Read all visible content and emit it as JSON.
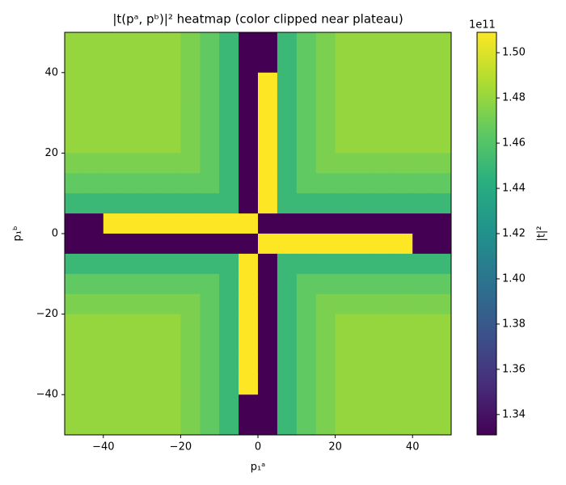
{
  "chart_data": {
    "type": "heatmap",
    "title": "|t(pᵃ, pᵇ)|² heatmap (color clipped near plateau)",
    "x_label": "p₁ᵃ",
    "y_label": "p₁ᵇ",
    "colorbar_label": "|t|²",
    "colorbar_offset": "1e11",
    "colormap": "viridis",
    "xlim": [
      -50,
      50
    ],
    "ylim": [
      -50,
      50
    ],
    "clim": [
      1.331,
      1.509
    ],
    "xticks": [
      {
        "value": -40,
        "label": "−40"
      },
      {
        "value": -20,
        "label": "−20"
      },
      0,
      20,
      40
    ],
    "yticks": [
      {
        "value": -40,
        "label": "−40"
      },
      {
        "value": -20,
        "label": "−20"
      },
      0,
      20,
      40
    ],
    "cticks": [
      1.34,
      1.36,
      1.38,
      {
        "value": 1.4,
        "label": "1.40"
      },
      1.42,
      1.44,
      1.46,
      1.48,
      {
        "value": 1.5,
        "label": "1.50"
      }
    ],
    "x": [
      -47.5,
      -42.5,
      -37.5,
      -32.5,
      -27.5,
      -22.5,
      -17.5,
      -12.5,
      -7.5,
      -2.5,
      2.5,
      7.5,
      12.5,
      17.5,
      22.5,
      27.5,
      32.5,
      37.5,
      42.5,
      47.5
    ],
    "y": [
      47.5,
      42.5,
      37.5,
      32.5,
      27.5,
      22.5,
      17.5,
      12.5,
      7.5,
      2.5,
      -2.5,
      -7.5,
      -12.5,
      -17.5,
      -22.5,
      -27.5,
      -32.5,
      -37.5,
      -42.5,
      -47.5
    ],
    "z": [
      [
        1.48,
        1.48,
        1.48,
        1.48,
        1.48,
        1.48,
        1.473,
        1.465,
        1.45,
        1.331,
        1.331,
        1.45,
        1.465,
        1.473,
        1.48,
        1.48,
        1.48,
        1.48,
        1.48,
        1.48
      ],
      [
        1.48,
        1.48,
        1.48,
        1.48,
        1.48,
        1.48,
        1.473,
        1.465,
        1.45,
        1.331,
        1.331,
        1.45,
        1.465,
        1.473,
        1.48,
        1.48,
        1.48,
        1.48,
        1.48,
        1.48
      ],
      [
        1.48,
        1.48,
        1.48,
        1.48,
        1.48,
        1.48,
        1.473,
        1.465,
        1.45,
        1.331,
        1.509,
        1.45,
        1.465,
        1.473,
        1.48,
        1.48,
        1.48,
        1.48,
        1.48,
        1.48
      ],
      [
        1.48,
        1.48,
        1.48,
        1.48,
        1.48,
        1.48,
        1.473,
        1.465,
        1.45,
        1.331,
        1.509,
        1.45,
        1.465,
        1.473,
        1.48,
        1.48,
        1.48,
        1.48,
        1.48,
        1.48
      ],
      [
        1.48,
        1.48,
        1.48,
        1.48,
        1.48,
        1.48,
        1.473,
        1.465,
        1.45,
        1.331,
        1.509,
        1.45,
        1.465,
        1.473,
        1.48,
        1.48,
        1.48,
        1.48,
        1.48,
        1.48
      ],
      [
        1.48,
        1.48,
        1.48,
        1.48,
        1.48,
        1.48,
        1.473,
        1.465,
        1.45,
        1.331,
        1.509,
        1.45,
        1.465,
        1.473,
        1.48,
        1.48,
        1.48,
        1.48,
        1.48,
        1.48
      ],
      [
        1.473,
        1.473,
        1.473,
        1.473,
        1.473,
        1.473,
        1.473,
        1.465,
        1.45,
        1.331,
        1.509,
        1.45,
        1.465,
        1.473,
        1.473,
        1.473,
        1.473,
        1.473,
        1.473,
        1.473
      ],
      [
        1.465,
        1.465,
        1.465,
        1.465,
        1.465,
        1.465,
        1.465,
        1.465,
        1.45,
        1.331,
        1.509,
        1.45,
        1.465,
        1.465,
        1.465,
        1.465,
        1.465,
        1.465,
        1.465,
        1.465
      ],
      [
        1.45,
        1.45,
        1.45,
        1.45,
        1.45,
        1.45,
        1.45,
        1.45,
        1.45,
        1.331,
        1.509,
        1.45,
        1.45,
        1.45,
        1.45,
        1.45,
        1.45,
        1.45,
        1.45,
        1.45
      ],
      [
        1.331,
        1.331,
        1.509,
        1.509,
        1.509,
        1.509,
        1.509,
        1.509,
        1.509,
        1.509,
        1.331,
        1.331,
        1.331,
        1.331,
        1.331,
        1.331,
        1.331,
        1.331,
        1.331,
        1.331
      ],
      [
        1.331,
        1.331,
        1.331,
        1.331,
        1.331,
        1.331,
        1.331,
        1.331,
        1.331,
        1.331,
        1.509,
        1.509,
        1.509,
        1.509,
        1.509,
        1.509,
        1.509,
        1.509,
        1.331,
        1.331
      ],
      [
        1.45,
        1.45,
        1.45,
        1.45,
        1.45,
        1.45,
        1.45,
        1.45,
        1.45,
        1.509,
        1.331,
        1.45,
        1.45,
        1.45,
        1.45,
        1.45,
        1.45,
        1.45,
        1.45,
        1.45
      ],
      [
        1.465,
        1.465,
        1.465,
        1.465,
        1.465,
        1.465,
        1.465,
        1.465,
        1.45,
        1.509,
        1.331,
        1.45,
        1.465,
        1.465,
        1.465,
        1.465,
        1.465,
        1.465,
        1.465,
        1.465
      ],
      [
        1.473,
        1.473,
        1.473,
        1.473,
        1.473,
        1.473,
        1.473,
        1.465,
        1.45,
        1.509,
        1.331,
        1.45,
        1.465,
        1.473,
        1.473,
        1.473,
        1.473,
        1.473,
        1.473,
        1.473
      ],
      [
        1.48,
        1.48,
        1.48,
        1.48,
        1.48,
        1.48,
        1.473,
        1.465,
        1.45,
        1.509,
        1.331,
        1.45,
        1.465,
        1.473,
        1.48,
        1.48,
        1.48,
        1.48,
        1.48,
        1.48
      ],
      [
        1.48,
        1.48,
        1.48,
        1.48,
        1.48,
        1.48,
        1.473,
        1.465,
        1.45,
        1.509,
        1.331,
        1.45,
        1.465,
        1.473,
        1.48,
        1.48,
        1.48,
        1.48,
        1.48,
        1.48
      ],
      [
        1.48,
        1.48,
        1.48,
        1.48,
        1.48,
        1.48,
        1.473,
        1.465,
        1.45,
        1.509,
        1.331,
        1.45,
        1.465,
        1.473,
        1.48,
        1.48,
        1.48,
        1.48,
        1.48,
        1.48
      ],
      [
        1.48,
        1.48,
        1.48,
        1.48,
        1.48,
        1.48,
        1.473,
        1.465,
        1.45,
        1.509,
        1.331,
        1.45,
        1.465,
        1.473,
        1.48,
        1.48,
        1.48,
        1.48,
        1.48,
        1.48
      ],
      [
        1.48,
        1.48,
        1.48,
        1.48,
        1.48,
        1.48,
        1.473,
        1.465,
        1.45,
        1.331,
        1.331,
        1.45,
        1.465,
        1.473,
        1.48,
        1.48,
        1.48,
        1.48,
        1.48,
        1.48
      ],
      [
        1.48,
        1.48,
        1.48,
        1.48,
        1.48,
        1.48,
        1.473,
        1.465,
        1.45,
        1.331,
        1.331,
        1.45,
        1.465,
        1.473,
        1.48,
        1.48,
        1.48,
        1.48,
        1.48,
        1.48
      ]
    ]
  }
}
